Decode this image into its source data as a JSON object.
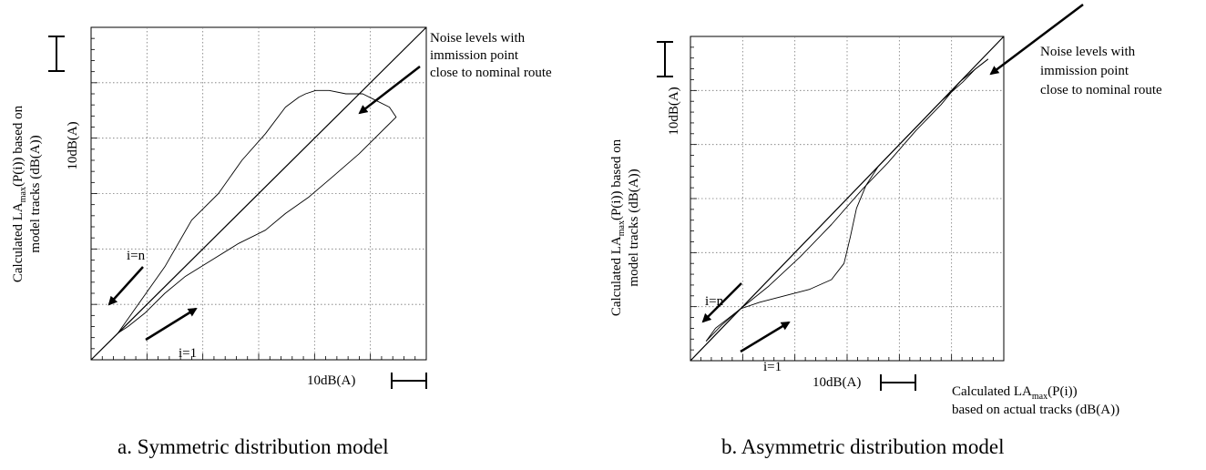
{
  "chart_data": [
    {
      "type": "line",
      "caption": "a. Symmetric distribution model",
      "xlabel": "",
      "ylabel_prefix": "Calculated LA",
      "ylabel_sub": "max",
      "ylabel_rest": "(P(i)) based on",
      "ylabel_line2": "model tracks (dB(A))",
      "scale_x_label": "10dB(A)",
      "scale_y_label": "10dB(A)",
      "annotation_lines": [
        "Noise levels with",
        "immission point",
        "close to nominal route"
      ],
      "label_in": "i=n",
      "label_i1": "i=1",
      "grid": true,
      "xlim": [
        0,
        100
      ],
      "ylim": [
        0,
        100
      ],
      "series": [
        {
          "values": [
            [
              0,
              0
            ],
            [
              100,
              100
            ]
          ]
        },
        {
          "values": [
            [
              8,
              8
            ],
            [
              15,
              18
            ],
            [
              22,
              28
            ],
            [
              30,
              42
            ],
            [
              38,
              50
            ],
            [
              45,
              60
            ],
            [
              52,
              68
            ],
            [
              58,
              76
            ],
            [
              62,
              79
            ],
            [
              64,
              80
            ],
            [
              67,
              81
            ],
            [
              71,
              81
            ],
            [
              76,
              80
            ],
            [
              81,
              80
            ],
            [
              85,
              78
            ],
            [
              89,
              76
            ],
            [
              91,
              73
            ],
            [
              88,
              70
            ],
            [
              80,
              62
            ],
            [
              72,
              55
            ],
            [
              65,
              49
            ],
            [
              58,
              44
            ],
            [
              52,
              39
            ],
            [
              44,
              35
            ],
            [
              36,
              30
            ],
            [
              28,
              25
            ],
            [
              22,
              20
            ],
            [
              16,
              14
            ],
            [
              11,
              10
            ],
            [
              8,
              8
            ]
          ]
        }
      ]
    },
    {
      "type": "line",
      "caption": "b. Asymmetric distribution model",
      "xlabel_line1_prefix": "Calculated LA",
      "xlabel_line1_sub": "max",
      "xlabel_line1_rest": "(P(i))",
      "xlabel_line2": "based on actual tracks (dB(A))",
      "ylabel_prefix": "Calculated LA",
      "ylabel_sub": "max",
      "ylabel_rest": "(P(i)) based on",
      "ylabel_line2": "model tracks (dB(A))",
      "scale_x_label": "10dB(A)",
      "scale_y_label": "10dB(A)",
      "annotation_lines": [
        "Noise levels with",
        "immission point",
        "close to nominal route"
      ],
      "label_in": "i=n",
      "label_i1": "i=1",
      "grid": true,
      "xlim": [
        0,
        100
      ],
      "ylim": [
        0,
        100
      ],
      "series": [
        {
          "values": [
            [
              0,
              0
            ],
            [
              100,
              100
            ]
          ]
        },
        {
          "values": [
            [
              5,
              6
            ],
            [
              10,
              11
            ],
            [
              16,
              16
            ],
            [
              25,
              23
            ],
            [
              35,
              32
            ],
            [
              45,
              42
            ],
            [
              55,
              53
            ],
            [
              63,
              61
            ],
            [
              72,
              71
            ],
            [
              80,
              79
            ],
            [
              86,
              86
            ],
            [
              91,
              90
            ],
            [
              95,
              93
            ]
          ]
        },
        {
          "values": [
            [
              5,
              6
            ],
            [
              8,
              10
            ],
            [
              12,
              13
            ],
            [
              16,
              16
            ],
            [
              22,
              18
            ],
            [
              30,
              20
            ],
            [
              38,
              22
            ],
            [
              45,
              25
            ],
            [
              49,
              30
            ],
            [
              51,
              38
            ],
            [
              53,
              47
            ],
            [
              56,
              54
            ],
            [
              60,
              60
            ],
            [
              63,
              63
            ],
            [
              66,
              66
            ],
            [
              72,
              72
            ],
            [
              80,
              80
            ],
            [
              87,
              86
            ],
            [
              91,
              90
            ],
            [
              95,
              93
            ]
          ]
        }
      ]
    }
  ]
}
